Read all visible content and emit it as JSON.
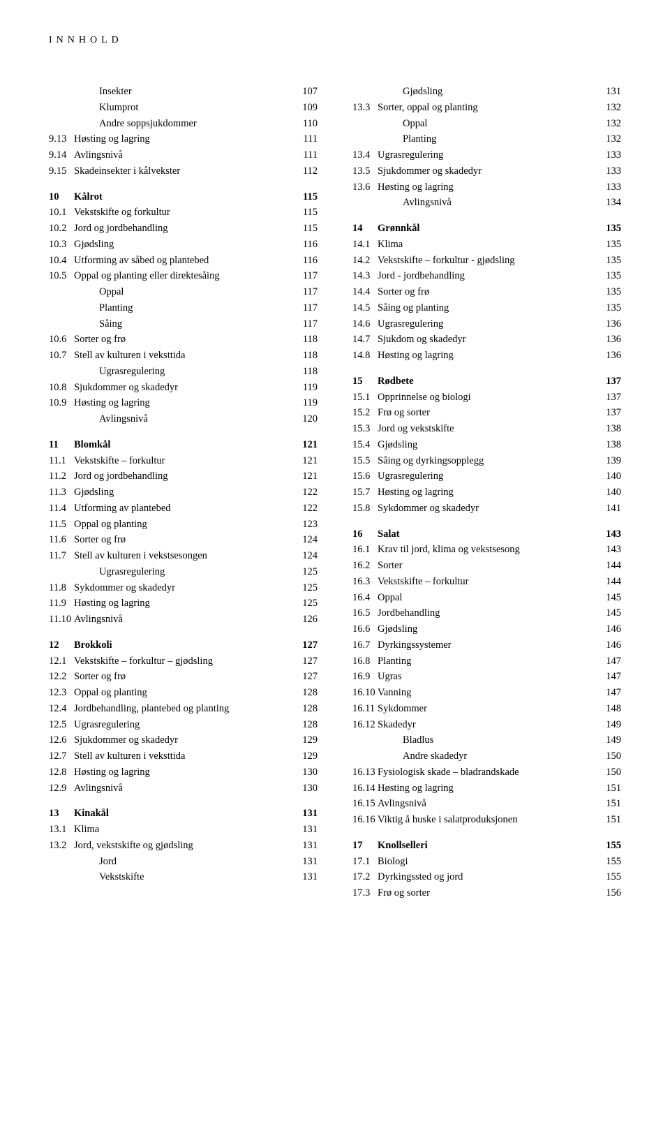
{
  "header": "Innhold",
  "left": [
    {
      "n": "",
      "l": "Insekter",
      "p": "107",
      "sub": true
    },
    {
      "n": "",
      "l": "Klumprot",
      "p": "109",
      "sub": true
    },
    {
      "n": "",
      "l": "Andre soppsjukdommer",
      "p": "110",
      "sub": true
    },
    {
      "n": "9.13",
      "l": "Høsting og lagring",
      "p": "111"
    },
    {
      "n": "9.14",
      "l": "Avlingsnivå",
      "p": "111"
    },
    {
      "n": "9.15",
      "l": "Skadeinsekter i kålvekster",
      "p": "112"
    },
    {
      "spacer": true
    },
    {
      "n": "10",
      "l": "Kålrot",
      "p": "115",
      "b": true
    },
    {
      "n": "10.1",
      "l": "Vekstskifte og forkultur",
      "p": "115"
    },
    {
      "n": "10.2",
      "l": "Jord og jordbehandling",
      "p": "115"
    },
    {
      "n": "10.3",
      "l": "Gjødsling",
      "p": "116"
    },
    {
      "n": "10.4",
      "l": "Utforming av såbed og plantebed",
      "p": "116"
    },
    {
      "n": "10.5",
      "l": "Oppal og planting eller direktesåing",
      "p": "117"
    },
    {
      "n": "",
      "l": "Oppal",
      "p": "117",
      "sub": true
    },
    {
      "n": "",
      "l": "Planting",
      "p": "117",
      "sub": true
    },
    {
      "n": "",
      "l": "Såing",
      "p": "117",
      "sub": true
    },
    {
      "n": "10.6",
      "l": "Sorter og frø",
      "p": "118"
    },
    {
      "n": "10.7",
      "l": "Stell av kulturen i veksttida",
      "p": "118"
    },
    {
      "n": "",
      "l": "Ugrasregulering",
      "p": "118",
      "sub": true
    },
    {
      "n": "10.8",
      "l": "Sjukdommer og skadedyr",
      "p": "119"
    },
    {
      "n": "10.9",
      "l": "Høsting og lagring",
      "p": "119"
    },
    {
      "n": "",
      "l": "Avlingsnivå",
      "p": "120",
      "sub": true
    },
    {
      "spacer": true
    },
    {
      "n": "11",
      "l": "Blomkål",
      "p": "121",
      "b": true
    },
    {
      "n": "11.1",
      "l": "Vekstskifte – forkultur",
      "p": "121"
    },
    {
      "n": "11.2",
      "l": "Jord og jordbehandling",
      "p": "121"
    },
    {
      "n": "11.3",
      "l": "Gjødsling",
      "p": "122"
    },
    {
      "n": "11.4",
      "l": "Utforming av plantebed",
      "p": "122"
    },
    {
      "n": "11.5",
      "l": "Oppal og planting",
      "p": "123"
    },
    {
      "n": "11.6",
      "l": "Sorter og frø",
      "p": "124"
    },
    {
      "n": "11.7",
      "l": "Stell av kulturen i vekstsesongen",
      "p": "124"
    },
    {
      "n": "",
      "l": "Ugrasregulering",
      "p": "125",
      "sub": true
    },
    {
      "n": "11.8",
      "l": "Sykdommer og skadedyr",
      "p": "125"
    },
    {
      "n": "11.9",
      "l": "Høsting og lagring",
      "p": "125"
    },
    {
      "n": "11.10",
      "l": "Avlingsnivå",
      "p": "126"
    },
    {
      "spacer": true
    },
    {
      "n": "12",
      "l": "Brokkoli",
      "p": "127",
      "b": true
    },
    {
      "n": "12.1",
      "l": "Vekstskifte – forkultur – gjødsling",
      "p": "127"
    },
    {
      "n": "12.2",
      "l": "Sorter og frø",
      "p": "127"
    },
    {
      "n": "12.3",
      "l": "Oppal og planting",
      "p": "128"
    },
    {
      "n": "12.4",
      "l": "Jordbehandling, plantebed og planting",
      "p": "128"
    },
    {
      "n": "12.5",
      "l": "Ugrasregulering",
      "p": "128"
    },
    {
      "n": "12.6",
      "l": "Sjukdommer og skadedyr",
      "p": "129"
    },
    {
      "n": "12.7",
      "l": "Stell av kulturen i veksttida",
      "p": "129"
    },
    {
      "n": "12.8",
      "l": "Høsting og lagring",
      "p": "130"
    },
    {
      "n": "12.9",
      "l": "Avlingsnivå",
      "p": "130"
    },
    {
      "spacer": true
    },
    {
      "n": "13",
      "l": "Kinakål",
      "p": "131",
      "b": true
    },
    {
      "n": "13.1",
      "l": "Klima",
      "p": "131"
    },
    {
      "n": "13.2",
      "l": "Jord, vekstskifte og gjødsling",
      "p": "131"
    },
    {
      "n": "",
      "l": "Jord",
      "p": "131",
      "sub": true
    },
    {
      "n": "",
      "l": "Vekstskifte",
      "p": "131",
      "sub": true
    }
  ],
  "right": [
    {
      "n": "",
      "l": "Gjødsling",
      "p": "131",
      "sub": true
    },
    {
      "n": "13.3",
      "l": "Sorter, oppal og planting",
      "p": "132"
    },
    {
      "n": "",
      "l": "Oppal",
      "p": "132",
      "sub": true
    },
    {
      "n": "",
      "l": "Planting",
      "p": "132",
      "sub": true
    },
    {
      "n": "13.4",
      "l": "Ugrasregulering",
      "p": "133"
    },
    {
      "n": "13.5",
      "l": "Sjukdommer og skadedyr",
      "p": "133"
    },
    {
      "n": "13.6",
      "l": "Høsting og lagring",
      "p": "133"
    },
    {
      "n": "",
      "l": "Avlingsnivå",
      "p": "134",
      "sub": true
    },
    {
      "spacer": true
    },
    {
      "n": "14",
      "l": "Grønnkål",
      "p": "135",
      "b": true
    },
    {
      "n": "14.1",
      "l": "Klima",
      "p": "135"
    },
    {
      "n": "14.2",
      "l": "Vekstskifte – forkultur - gjødsling",
      "p": "135"
    },
    {
      "n": "14.3",
      "l": "Jord - jordbehandling",
      "p": "135"
    },
    {
      "n": "14.4",
      "l": "Sorter og frø",
      "p": "135"
    },
    {
      "n": "14.5",
      "l": "Såing og planting",
      "p": "135"
    },
    {
      "n": "14.6",
      "l": "Ugrasregulering",
      "p": "136"
    },
    {
      "n": "14.7",
      "l": "Sjukdom og skadedyr",
      "p": "136"
    },
    {
      "n": "14.8",
      "l": "Høsting og lagring",
      "p": "136"
    },
    {
      "spacer": true
    },
    {
      "n": "15",
      "l": "Rødbete",
      "p": "137",
      "b": true
    },
    {
      "n": "15.1",
      "l": "Opprinnelse og biologi",
      "p": "137"
    },
    {
      "n": "15.2",
      "l": "Frø og sorter",
      "p": "137"
    },
    {
      "n": "15.3",
      "l": "Jord og vekstskifte",
      "p": "138"
    },
    {
      "n": "15.4",
      "l": "Gjødsling",
      "p": "138"
    },
    {
      "n": "15.5",
      "l": "Såing og dyrkingsopplegg",
      "p": "139"
    },
    {
      "n": "15.6",
      "l": "Ugrasregulering",
      "p": "140"
    },
    {
      "n": "15.7",
      "l": "Høsting og lagring",
      "p": "140"
    },
    {
      "n": "15.8",
      "l": "Sykdommer og skadedyr",
      "p": "141"
    },
    {
      "spacer": true
    },
    {
      "n": "16",
      "l": "Salat",
      "p": "143",
      "b": true
    },
    {
      "n": "16.1",
      "l": "Krav til jord, klima og vekstsesong",
      "p": "143"
    },
    {
      "n": "16.2",
      "l": "Sorter",
      "p": "144"
    },
    {
      "n": "16.3",
      "l": "Vekstskifte – forkultur",
      "p": "144"
    },
    {
      "n": "16.4",
      "l": "Oppal",
      "p": "145"
    },
    {
      "n": "16.5",
      "l": "Jordbehandling",
      "p": "145"
    },
    {
      "n": "16.6",
      "l": "Gjødsling",
      "p": "146"
    },
    {
      "n": "16.7",
      "l": "Dyrkingssystemer",
      "p": "146"
    },
    {
      "n": "16.8",
      "l": "Planting",
      "p": "147"
    },
    {
      "n": "16.9",
      "l": "Ugras",
      "p": "147"
    },
    {
      "n": "16.10",
      "l": "Vanning",
      "p": "147"
    },
    {
      "n": "16.11",
      "l": "Sykdommer",
      "p": "148"
    },
    {
      "n": "16.12",
      "l": "Skadedyr",
      "p": "149"
    },
    {
      "n": "",
      "l": "Bladlus",
      "p": "149",
      "sub": true
    },
    {
      "n": "",
      "l": "Andre skadedyr",
      "p": "150",
      "sub": true
    },
    {
      "n": "16.13",
      "l": "Fysiologisk skade – bladrandskade",
      "p": "150"
    },
    {
      "n": "16.14",
      "l": "Høsting og lagring",
      "p": "151"
    },
    {
      "n": "16.15",
      "l": "Avlingsnivå",
      "p": "151"
    },
    {
      "n": "16.16",
      "l": "Viktig å huske i salatproduksjonen",
      "p": "151"
    },
    {
      "spacer": true
    },
    {
      "n": "17",
      "l": "Knollselleri",
      "p": "155",
      "b": true
    },
    {
      "n": "17.1",
      "l": "Biologi",
      "p": "155"
    },
    {
      "n": "17.2",
      "l": "Dyrkingssted og jord",
      "p": "155"
    },
    {
      "n": "17.3",
      "l": "Frø og sorter",
      "p": "156"
    }
  ]
}
